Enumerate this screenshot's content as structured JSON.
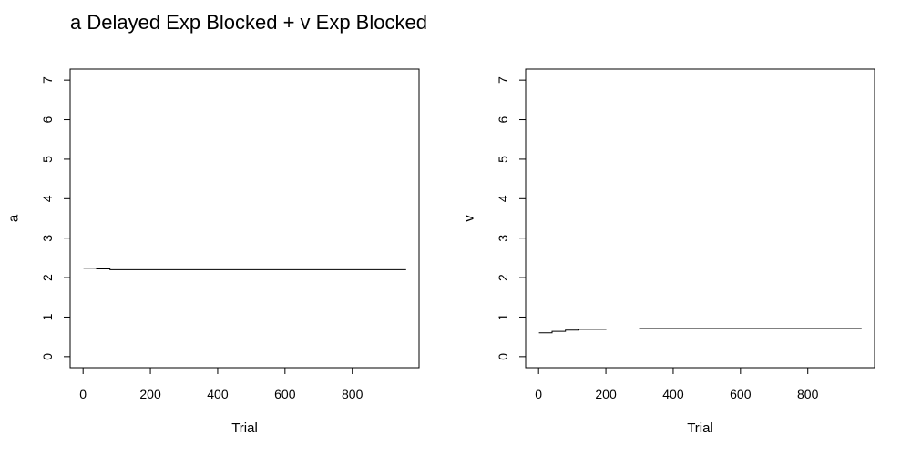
{
  "title": "a Delayed Exp Blocked + v Exp Blocked",
  "chart_data": [
    {
      "type": "line",
      "title": "",
      "xlabel": "Trial",
      "ylabel": "a",
      "xlim": [
        0,
        960
      ],
      "ylim": [
        0,
        7
      ],
      "xticks": [
        0,
        200,
        400,
        600,
        800
      ],
      "yticks": [
        0,
        1,
        2,
        3,
        4,
        5,
        6,
        7
      ],
      "grid": false,
      "series": [
        {
          "x": [
            1,
            40,
            40,
            80,
            80,
            960
          ],
          "y": [
            2.24,
            2.24,
            2.22,
            2.22,
            2.2,
            2.2
          ]
        }
      ]
    },
    {
      "type": "line",
      "title": "",
      "xlabel": "Trial",
      "ylabel": "v",
      "xlim": [
        0,
        960
      ],
      "ylim": [
        0,
        7
      ],
      "xticks": [
        0,
        200,
        400,
        600,
        800
      ],
      "yticks": [
        0,
        1,
        2,
        3,
        4,
        5,
        6,
        7
      ],
      "grid": false,
      "series": [
        {
          "x": [
            1,
            40,
            40,
            80,
            80,
            120,
            120,
            200,
            200,
            300,
            300,
            960
          ],
          "y": [
            0.6,
            0.6,
            0.64,
            0.64,
            0.67,
            0.67,
            0.69,
            0.69,
            0.7,
            0.7,
            0.71,
            0.71
          ]
        }
      ]
    }
  ]
}
